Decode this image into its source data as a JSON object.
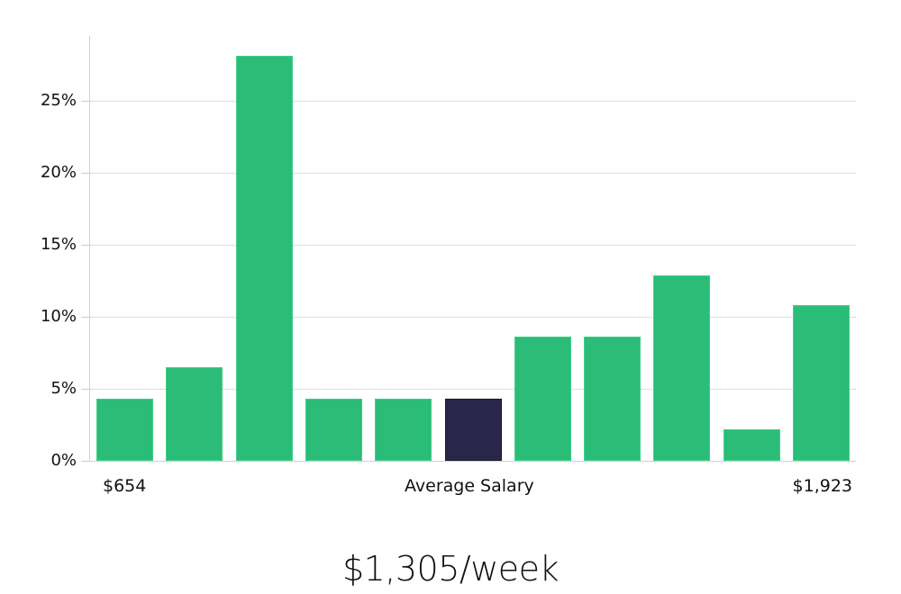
{
  "chart_data": {
    "type": "bar",
    "title": "",
    "xlabel": "Average Salary",
    "ylabel": "",
    "categories": [
      "1",
      "2",
      "3",
      "4",
      "5",
      "6",
      "7",
      "8",
      "9",
      "10",
      "11"
    ],
    "values": [
      4.3,
      6.5,
      28.1,
      4.3,
      4.3,
      4.3,
      8.6,
      8.6,
      12.9,
      2.2,
      10.8
    ],
    "highlight_index": 5,
    "ylim": [
      0,
      29.5
    ],
    "yticks": [
      "0%",
      "5%",
      "10%",
      "15%",
      "20%",
      "25%"
    ],
    "ytick_values": [
      0,
      5,
      10,
      15,
      20,
      25
    ],
    "grid": true,
    "x_min_label": "$654",
    "x_max_label": "$1,923",
    "colors": {
      "bar": "#2bbd78",
      "highlight": "#29264a",
      "grid": "#dedede"
    }
  },
  "footer": {
    "salary": "$1,305/week"
  }
}
